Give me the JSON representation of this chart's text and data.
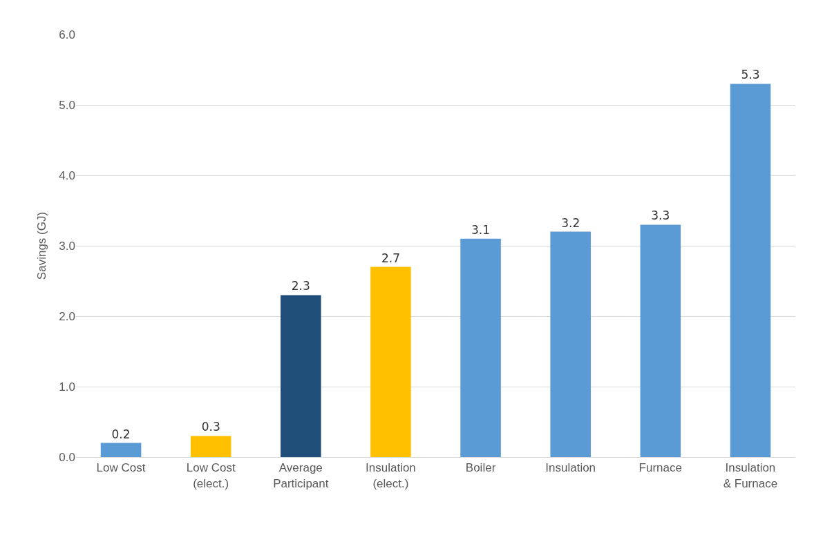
{
  "chart_data": {
    "type": "bar",
    "ylabel": "Savings (GJ)",
    "categories": [
      "Low Cost",
      "Low Cost (elect.)",
      "Average Participant",
      "Insulation (elect.)",
      "Boiler",
      "Insulation",
      "Furnace",
      "Insulation & Furnace"
    ],
    "values": [
      0.2,
      0.3,
      2.3,
      2.7,
      3.1,
      3.2,
      3.3,
      5.3
    ],
    "colors": [
      "#5b9bd5",
      "#ffc000",
      "#1f4e79",
      "#ffc000",
      "#5b9bd5",
      "#5b9bd5",
      "#5b9bd5",
      "#5b9bd5"
    ],
    "ylim": [
      0,
      6
    ],
    "yticks": [
      {
        "value": 0,
        "label": "0.0"
      },
      {
        "value": 1,
        "label": "1.0"
      },
      {
        "value": 2,
        "label": "2.0"
      },
      {
        "value": 3,
        "label": "3.0"
      },
      {
        "value": 4,
        "label": "4.0"
      },
      {
        "value": 5,
        "label": "5.0"
      },
      {
        "value": 6,
        "label": "6.0"
      }
    ],
    "grid": "y",
    "data_labels": true
  }
}
